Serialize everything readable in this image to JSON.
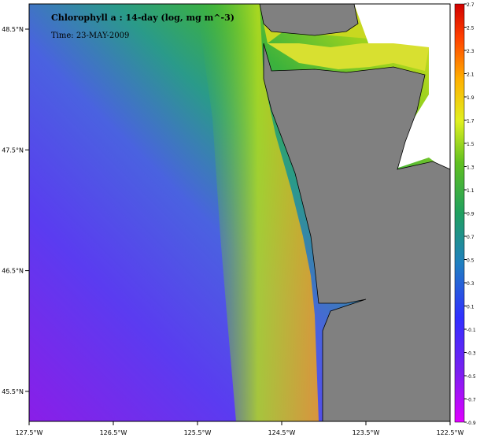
{
  "map": {
    "title": "Chlorophyll a : 14-day (log, mg m^-3)",
    "time": "Time: 23-MAY-2009",
    "lon_labels": [
      "127.5°W",
      "126.5°W",
      "125.5°W",
      "124.5°W",
      "123.5°W",
      "122.5°W"
    ],
    "lat_labels": [
      "48.5°N",
      "47.5°N",
      "46.5°N",
      "45.5°N"
    ],
    "colorbar_labels": [
      "2.7",
      "2.5",
      "2.3",
      "2.1",
      "1.9",
      "1.7",
      "1.5",
      "1.3",
      "1.1",
      "0.9",
      "0.7",
      "0.5",
      "0.3",
      "0.1",
      "-0.1",
      "-0.3",
      "-0.5",
      "-0.7",
      "-0.9"
    ]
  }
}
